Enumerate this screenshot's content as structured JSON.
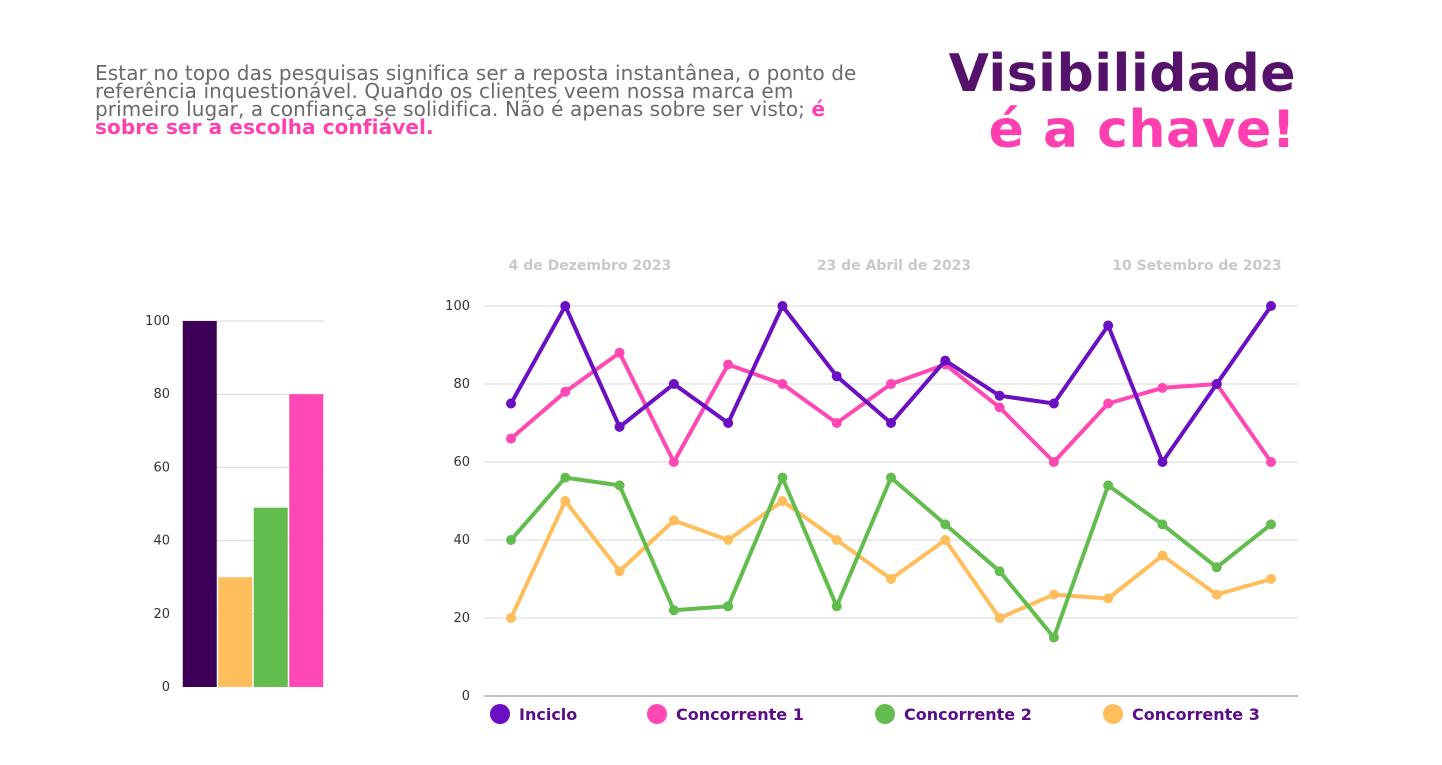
{
  "intro": {
    "text": "Estar no topo das pesquisas significa ser a reposta instantânea, o ponto de referência inquestionável. Quando os clientes veem nossa marca em primeiro lugar, a confiança se solidifica. Não é apenas sobre ser visto; ",
    "emphasis": "é sobre ser a escolha confiável."
  },
  "headline": {
    "line1": "Visibilidade",
    "line2": "é a chave!"
  },
  "colors": {
    "dark_purple": "#3d0059",
    "purple": "#6a0fc2",
    "pink": "#ff48b4",
    "green": "#63bc4e",
    "orange": "#ffbe5b",
    "headline_purple": "#55126a",
    "headline_pink": "#ff3fb0"
  },
  "chart_data": [
    {
      "type": "bar",
      "categories": [
        "",
        "",
        "",
        ""
      ],
      "values": [
        100,
        30,
        49,
        80
      ],
      "colors": [
        "#3d0059",
        "#ffbe5b",
        "#63bc4e",
        "#ff48b4"
      ],
      "title": "",
      "xlabel": "",
      "ylabel": "",
      "ylim": [
        0,
        100
      ],
      "yticks": [
        "0",
        "20",
        "40",
        "60",
        "80",
        "100"
      ],
      "grid": true
    },
    {
      "type": "line",
      "x": [
        1,
        2,
        3,
        4,
        5,
        6,
        7,
        8,
        9,
        10,
        11,
        12,
        13,
        14,
        15
      ],
      "header_labels": [
        "4 de Dezembro 2023",
        "23 de Abril de 2023",
        "10 Setembro de 2023"
      ],
      "series": [
        {
          "name": "Inciclo",
          "color": "#6a0fc2",
          "values": [
            75,
            100,
            69,
            80,
            70,
            100,
            82,
            70,
            86,
            77,
            75,
            95,
            60,
            80,
            100
          ]
        },
        {
          "name": "Concorrente 1",
          "color": "#ff48b4",
          "values": [
            66,
            78,
            88,
            60,
            85,
            80,
            70,
            80,
            85,
            74,
            60,
            75,
            79,
            80,
            60
          ]
        },
        {
          "name": "Concorrente 2",
          "color": "#63bc4e",
          "values": [
            40,
            56,
            54,
            22,
            23,
            56,
            23,
            56,
            44,
            32,
            15,
            54,
            44,
            33,
            44
          ]
        },
        {
          "name": "Concorrente 3",
          "color": "#ffbe5b",
          "values": [
            20,
            50,
            32,
            45,
            40,
            50,
            40,
            30,
            40,
            20,
            26,
            25,
            36,
            26,
            30
          ]
        }
      ],
      "title": "",
      "xlabel": "",
      "ylabel": "",
      "ylim": [
        0,
        100
      ],
      "yticks": [
        "0",
        "20",
        "40",
        "60",
        "80",
        "100"
      ],
      "grid": true,
      "legend_position": "bottom"
    }
  ]
}
